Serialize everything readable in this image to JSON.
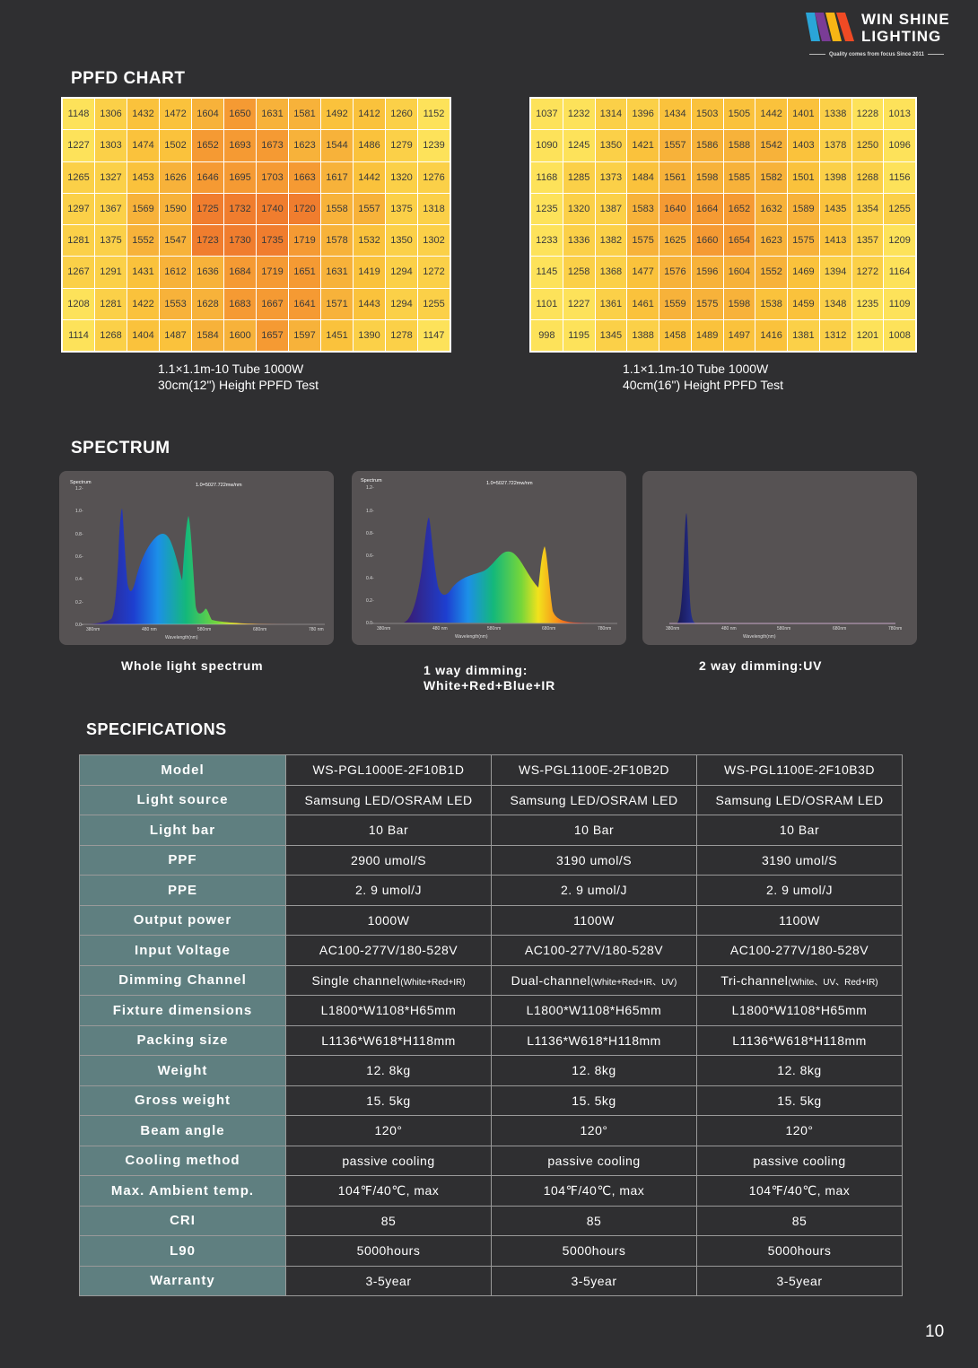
{
  "brand": {
    "name_line1": "WIN SHINE",
    "name_line2": "LIGHTING",
    "tagline": "Quality comes from focus   Since 2011",
    "colors": [
      "#f04a24",
      "#f7b515",
      "#2aa5d8",
      "#7a3c96"
    ]
  },
  "ppfd": {
    "title": "PPFD CHART",
    "charts": [
      {
        "caption_line1": "1.1×1.1m-10 Tube 1000W",
        "caption_line2": "30cm(12\") Height PPFD Test",
        "rows": [
          [
            1148,
            1306,
            1432,
            1472,
            1604,
            1650,
            1631,
            1581,
            1492,
            1412,
            1260,
            1152
          ],
          [
            1227,
            1303,
            1474,
            1502,
            1652,
            1693,
            1673,
            1623,
            1544,
            1486,
            1279,
            1239
          ],
          [
            1265,
            1327,
            1453,
            1626,
            1646,
            1695,
            1703,
            1663,
            1617,
            1442,
            1320,
            1276
          ],
          [
            1297,
            1367,
            1569,
            1590,
            1725,
            1732,
            1740,
            1720,
            1558,
            1557,
            1375,
            1318
          ],
          [
            1281,
            1375,
            1552,
            1547,
            1723,
            1730,
            1735,
            1719,
            1578,
            1532,
            1350,
            1302
          ],
          [
            1267,
            1291,
            1431,
            1612,
            1636,
            1684,
            1719,
            1651,
            1631,
            1419,
            1294,
            1272
          ],
          [
            1208,
            1281,
            1422,
            1553,
            1628,
            1683,
            1667,
            1641,
            1571,
            1443,
            1294,
            1255
          ],
          [
            1114,
            1268,
            1404,
            1487,
            1584,
            1600,
            1657,
            1597,
            1451,
            1390,
            1278,
            1147
          ]
        ]
      },
      {
        "caption_line1": "1.1×1.1m-10 Tube  1000W",
        "caption_line2": "40cm(16\") Height PPFD Test",
        "rows": [
          [
            1037,
            1232,
            1314,
            1396,
            1434,
            1503,
            1505,
            1442,
            1401,
            1338,
            1228,
            1013
          ],
          [
            1090,
            1245,
            1350,
            1421,
            1557,
            1586,
            1588,
            1542,
            1403,
            1378,
            1250,
            1096
          ],
          [
            1168,
            1285,
            1373,
            1484,
            1561,
            1598,
            1585,
            1582,
            1501,
            1398,
            1268,
            1156
          ],
          [
            1235,
            1320,
            1387,
            1583,
            1640,
            1664,
            1652,
            1632,
            1589,
            1435,
            1354,
            1255
          ],
          [
            1233,
            1336,
            1382,
            1575,
            1625,
            1660,
            1654,
            1623,
            1575,
            1413,
            1357,
            1209
          ],
          [
            1145,
            1258,
            1368,
            1477,
            1576,
            1596,
            1604,
            1552,
            1469,
            1394,
            1272,
            1164
          ],
          [
            1101,
            1227,
            1361,
            1461,
            1559,
            1575,
            1598,
            1538,
            1459,
            1348,
            1235,
            1109
          ],
          [
            998,
            1195,
            1345,
            1388,
            1458,
            1489,
            1497,
            1416,
            1381,
            1312,
            1201,
            1008
          ]
        ]
      }
    ]
  },
  "spectrum": {
    "title": "SPECTRUM",
    "panels": [
      {
        "caption_line1": "Whole light spectrum",
        "caption_line2": "",
        "chart_label": "Spectrum",
        "peak_label": "1.0=5027.722mw/nm",
        "xlabel": "Wavelength(nm)",
        "yticks": [
          "1.2-",
          "1.0-",
          "0.8-",
          "0.6-",
          "0.4-",
          "0.2-",
          "0.0-"
        ],
        "xticks": [
          "380nm",
          "480 nm",
          "580nm",
          "680nm",
          "780 nm"
        ]
      },
      {
        "caption_line1": "1 way dimming:",
        "caption_line2": "White+Red+Blue+IR",
        "chart_label": "Spectrum",
        "peak_label": "1.0=5027.722mw/nm",
        "xlabel": "Wavelength(nm)",
        "yticks": [
          "1.2-",
          "1.0-",
          "0.8-",
          "0.6-",
          "0.4-",
          "0.2-",
          "0.0-"
        ],
        "xticks": [
          "380nm",
          "480 nm",
          "580nm",
          "680nm",
          "780nm"
        ]
      },
      {
        "caption_line1": "2 way dimming:UV",
        "caption_line2": "",
        "chart_label": "",
        "peak_label": "",
        "xlabel": "Wavelength(nm)",
        "yticks": [],
        "xticks": [
          "380nm",
          "480 nm",
          "580nm",
          "680nm",
          "780nm"
        ]
      }
    ]
  },
  "specs": {
    "title": "SPECIFICATIONS",
    "rows": [
      {
        "label": "Model",
        "v1": "WS-PGL1000E-2F10B1D",
        "v2": "WS-PGL1100E-2F10B2D",
        "v3": "WS-PGL1100E-2F10B3D"
      },
      {
        "label": "Light source",
        "v1": "Samsung LED/OSRAM LED",
        "v2": "Samsung LED/OSRAM LED",
        "v3": "Samsung LED/OSRAM LED"
      },
      {
        "label": "Light bar",
        "v1": "10 Bar",
        "v2": "10 Bar",
        "v3": "10 Bar"
      },
      {
        "label": "PPF",
        "v1": "2900 umol/S",
        "v2": "3190 umol/S",
        "v3": "3190 umol/S"
      },
      {
        "label": "PPE",
        "v1": "2. 9 umol/J",
        "v2": "2. 9 umol/J",
        "v3": "2. 9 umol/J"
      },
      {
        "label": "Output power",
        "v1": "1000W",
        "v2": "1100W",
        "v3": "1100W"
      },
      {
        "label": "Input Voltage",
        "v1": "AC100-277V/180-528V",
        "v2": "AC100-277V/180-528V",
        "v3": "AC100-277V/180-528V"
      },
      {
        "label": "Dimming Channel",
        "v1": "Single channel",
        "v1_note": "(White+Red+IR)",
        "v2": "Dual-channel",
        "v2_note": "(White+Red+IR、UV)",
        "v3": "Tri-channel",
        "v3_note": "(White、UV、Red+IR)"
      },
      {
        "label": "Fixture dimensions",
        "v1": "L1800*W1108*H65mm",
        "v2": "L1800*W1108*H65mm",
        "v3": "L1800*W1108*H65mm"
      },
      {
        "label": "Packing size",
        "v1": "L1136*W618*H118mm",
        "v2": "L1136*W618*H118mm",
        "v3": "L1136*W618*H118mm"
      },
      {
        "label": "Weight",
        "v1": "12. 8kg",
        "v2": "12. 8kg",
        "v3": "12. 8kg"
      },
      {
        "label": "Gross weight",
        "v1": "15. 5kg",
        "v2": "15. 5kg",
        "v3": "15. 5kg"
      },
      {
        "label": "Beam angle",
        "v1": "120°",
        "v2": "120°",
        "v3": "120°"
      },
      {
        "label": "Cooling method",
        "v1": "passive cooling",
        "v2": "passive cooling",
        "v3": "passive cooling"
      },
      {
        "label": "Max. Ambient temp.",
        "v1": "104℉/40℃, max",
        "v2": "104℉/40℃, max",
        "v3": "104℉/40℃, max"
      },
      {
        "label": "CRI",
        "v1": "85",
        "v2": "85",
        "v3": "85"
      },
      {
        "label": "L90",
        "v1": "5000hours",
        "v2": "5000hours",
        "v3": "5000hours"
      },
      {
        "label": "Warranty",
        "v1": "3-5year",
        "v2": "3-5year",
        "v3": "3-5year"
      }
    ]
  },
  "page_number": "10"
}
